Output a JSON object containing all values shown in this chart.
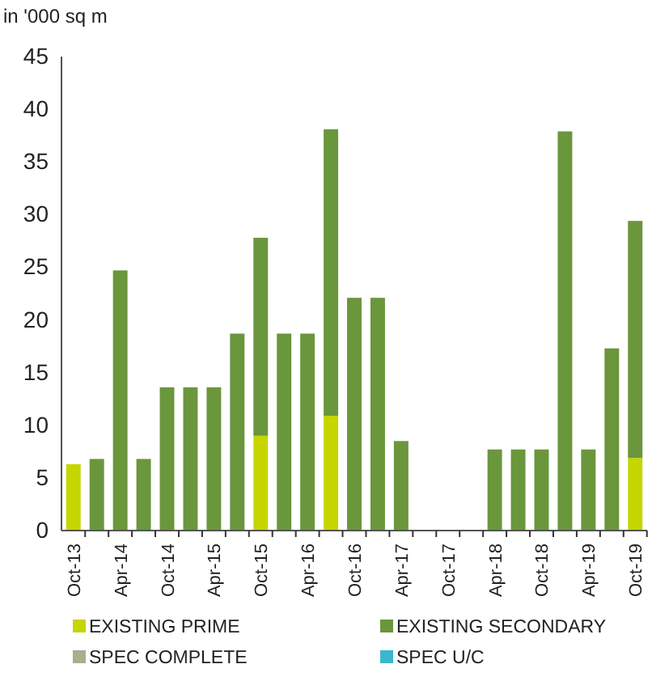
{
  "chart_data": {
    "type": "bar",
    "stacked": true,
    "ylabel": "in '000 sq m",
    "categories": [
      "Oct-13",
      null,
      "Apr-14",
      null,
      "Oct-14",
      null,
      "Apr-15",
      null,
      "Oct-15",
      null,
      "Apr-16",
      null,
      "Oct-16",
      null,
      "Apr-17",
      null,
      "Oct-17",
      null,
      "Apr-18",
      null,
      "Oct-18",
      null,
      "Apr-19",
      null,
      "Oct-19"
    ],
    "series": [
      {
        "name": "EXISTING PRIME",
        "color": "#c5d600",
        "values": [
          6.3,
          0,
          0,
          0,
          0,
          0,
          0,
          0,
          9.0,
          0,
          0,
          10.9,
          0,
          0,
          0,
          0,
          0,
          0,
          0,
          0,
          0,
          0,
          0,
          0,
          6.9
        ]
      },
      {
        "name": "EXISTING SECONDARY",
        "color": "#6a963c",
        "values": [
          0,
          6.8,
          24.7,
          6.8,
          13.6,
          13.6,
          13.6,
          18.7,
          18.8,
          18.7,
          18.7,
          27.2,
          22.1,
          22.1,
          8.5,
          0,
          0,
          0,
          7.7,
          7.7,
          7.7,
          37.9,
          7.7,
          17.3,
          22.5
        ]
      },
      {
        "name": "SPEC COMPLETE",
        "color": "#a9ae8c",
        "values": [
          0,
          0,
          0,
          0,
          0,
          0,
          0,
          0,
          0,
          0,
          0,
          0,
          0,
          0,
          0,
          0,
          0,
          0,
          0,
          0,
          0,
          0,
          0,
          0,
          0
        ]
      },
      {
        "name": "SPEC U/C",
        "color": "#3bb6cc",
        "values": [
          0,
          0,
          0,
          0,
          0,
          0,
          0,
          0,
          0,
          0,
          0,
          0,
          0,
          0,
          0,
          0,
          0,
          0,
          0,
          0,
          0,
          0,
          0,
          0,
          0
        ]
      }
    ],
    "ylim": [
      0,
      45
    ],
    "yticks": [
      0,
      5,
      10,
      15,
      20,
      25,
      30,
      35,
      40,
      45
    ],
    "grid": false,
    "legend": "bottom"
  }
}
